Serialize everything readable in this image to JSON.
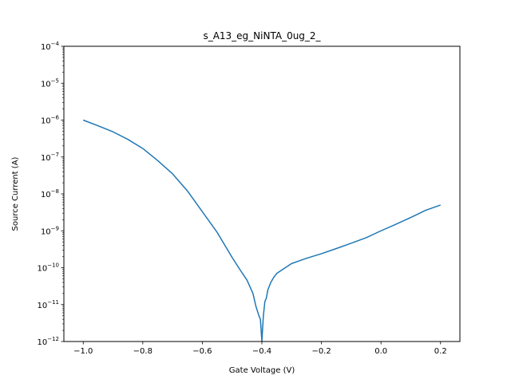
{
  "chart_data": {
    "type": "line",
    "title": "s_A13_eg_NiNTA_0ug_2_",
    "xlabel": "Gate Voltage (V)",
    "ylabel": "Source Current (A)",
    "xlim": [
      -1.065,
      0.265
    ],
    "ylim": [
      1e-12,
      0.0001
    ],
    "y_scale": "log",
    "grid": false,
    "x_ticks": [
      -1.0,
      -0.8,
      -0.6,
      -0.4,
      -0.2,
      0.0,
      0.2
    ],
    "x_tick_labels": [
      "−1.0",
      "−0.8",
      "−0.6",
      "−0.4",
      "−0.2",
      "0.0",
      "0.2"
    ],
    "y_ticks": [
      {
        "value": 1e-12,
        "exp": "−12"
      },
      {
        "value": 1e-11,
        "exp": "−11"
      },
      {
        "value": 1e-10,
        "exp": "−10"
      },
      {
        "value": 1e-09,
        "exp": "−9"
      },
      {
        "value": 1e-08,
        "exp": "−8"
      },
      {
        "value": 1e-07,
        "exp": "−7"
      },
      {
        "value": 1e-06,
        "exp": "−6"
      },
      {
        "value": 1e-05,
        "exp": "−5"
      },
      {
        "value": 0.0001,
        "exp": "−4"
      }
    ],
    "series": [
      {
        "color": "#1f77b4",
        "x": [
          -1.0,
          -0.95,
          -0.9,
          -0.85,
          -0.8,
          -0.75,
          -0.7,
          -0.65,
          -0.6,
          -0.55,
          -0.5,
          -0.47,
          -0.45,
          -0.43,
          -0.42,
          -0.41,
          -0.405,
          -0.4,
          -0.398,
          -0.395,
          -0.39,
          -0.385,
          -0.38,
          -0.37,
          -0.36,
          -0.35,
          -0.33,
          -0.3,
          -0.25,
          -0.2,
          -0.15,
          -0.1,
          -0.05,
          0.0,
          0.05,
          0.1,
          0.15,
          0.2
        ],
        "y": [
          1e-06,
          7e-07,
          4.8e-07,
          3e-07,
          1.7e-07,
          8e-08,
          3.5e-08,
          1.2e-08,
          3.3e-09,
          9e-10,
          1.9e-10,
          8e-11,
          4.6e-11,
          2e-11,
          9e-12,
          5e-12,
          4e-12,
          1e-12,
          2e-12,
          5e-12,
          1.2e-11,
          1.5e-11,
          2.5e-11,
          4e-11,
          5.5e-11,
          7e-11,
          9e-11,
          1.3e-10,
          1.8e-10,
          2.4e-10,
          3.3e-10,
          4.6e-10,
          6.5e-10,
          1e-09,
          1.5e-09,
          2.3e-09,
          3.6e-09,
          5e-09
        ]
      }
    ]
  }
}
